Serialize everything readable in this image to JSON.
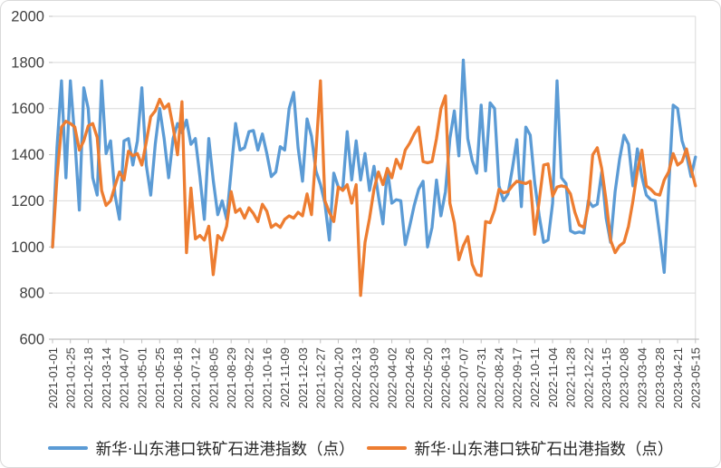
{
  "chart_data": {
    "type": "line",
    "title": "",
    "grid": "horizontal",
    "legend_position": "bottom",
    "background_color": "#FFFFFF",
    "gridline_color": "#D9D9D9",
    "axis_color": "#BFBFBF",
    "text_color": "#404040",
    "y_axis": {
      "range": [
        600,
        2000
      ],
      "ticks": [
        600,
        800,
        1000,
        1200,
        1400,
        1600,
        1800,
        2000
      ]
    },
    "x_axis": {
      "points_per_tick": 4,
      "tick_labels": [
        "2021-01-01",
        "2021-01-25",
        "2021-02-18",
        "2021-03-14",
        "2021-04-07",
        "2021-05-01",
        "2021-05-25",
        "2021-06-18",
        "2021-07-12",
        "2021-08-05",
        "2021-08-29",
        "2021-09-22",
        "2021-10-16",
        "2021-11-09",
        "2021-12-03",
        "2021-12-27",
        "2022-01-20",
        "2022-02-13",
        "2022-03-09",
        "2022-04-02",
        "2022-04-26",
        "2022-05-20",
        "2022-06-13",
        "2022-07-07",
        "2022-07-31",
        "2022-08-24",
        "2022-09-17",
        "2022-10-11",
        "2022-11-04",
        "2022-11-28",
        "2022-12-22",
        "2023-01-15",
        "2023-02-08",
        "2023-03-04",
        "2023-03-28",
        "2023-04-21",
        "2023-05-15"
      ]
    },
    "series": [
      {
        "name": "新华·山东港口铁矿石进港指数（点）",
        "color": "#5B9BD5",
        "values": [
          1000,
          1430,
          1720,
          1300,
          1720,
          1470,
          1160,
          1690,
          1600,
          1300,
          1225,
          1720,
          1405,
          1460,
          1225,
          1120,
          1460,
          1470,
          1355,
          1460,
          1690,
          1355,
          1225,
          1445,
          1600,
          1470,
          1300,
          1470,
          1535,
          1495,
          1550,
          1445,
          1470,
          1305,
          1120,
          1470,
          1290,
          1140,
          1200,
          1120,
          1330,
          1535,
          1420,
          1430,
          1500,
          1505,
          1420,
          1490,
          1405,
          1305,
          1325,
          1435,
          1420,
          1600,
          1670,
          1430,
          1285,
          1555,
          1480,
          1330,
          1270,
          1190,
          1030,
          1320,
          1260,
          1250,
          1500,
          1290,
          1460,
          1290,
          1405,
          1245,
          1350,
          1220,
          1100,
          1340,
          1190,
          1205,
          1200,
          1010,
          1090,
          1180,
          1250,
          1285,
          1000,
          1085,
          1290,
          1135,
          1240,
          1470,
          1590,
          1395,
          1810,
          1470,
          1375,
          1320,
          1615,
          1330,
          1625,
          1600,
          1265,
          1200,
          1230,
          1340,
          1465,
          1175,
          1520,
          1485,
          1280,
          1135,
          1020,
          1030,
          1190,
          1720,
          1300,
          1275,
          1070,
          1060,
          1065,
          1060,
          1200,
          1175,
          1185,
          1325,
          1125,
          1020,
          1240,
          1380,
          1485,
          1445,
          1265,
          1425,
          1305,
          1225,
          1205,
          1200,
          1050,
          890,
          1250,
          1615,
          1600,
          1460,
          1400,
          1305,
          1390
        ]
      },
      {
        "name": "新华·山东港口铁矿石出港指数（点）",
        "color": "#ED7D31",
        "values": [
          1000,
          1300,
          1520,
          1545,
          1535,
          1520,
          1420,
          1460,
          1525,
          1535,
          1475,
          1245,
          1180,
          1200,
          1265,
          1325,
          1290,
          1415,
          1395,
          1405,
          1355,
          1455,
          1565,
          1590,
          1640,
          1600,
          1620,
          1520,
          1400,
          1630,
          975,
          1255,
          1035,
          1050,
          1030,
          1090,
          880,
          1050,
          1030,
          1090,
          1240,
          1150,
          1165,
          1125,
          1170,
          1145,
          1110,
          1185,
          1155,
          1085,
          1100,
          1085,
          1120,
          1135,
          1125,
          1150,
          1135,
          1230,
          1140,
          1410,
          1720,
          1200,
          1150,
          1110,
          1260,
          1245,
          1270,
          1190,
          1270,
          790,
          1020,
          1125,
          1250,
          1325,
          1270,
          1340,
          1300,
          1380,
          1340,
          1420,
          1450,
          1490,
          1520,
          1370,
          1365,
          1370,
          1470,
          1600,
          1655,
          1190,
          1105,
          945,
          1005,
          1045,
          925,
          880,
          875,
          1110,
          1105,
          1160,
          1250,
          1235,
          1240,
          1265,
          1285,
          1280,
          1275,
          1285,
          1055,
          1200,
          1355,
          1360,
          1220,
          1260,
          1265,
          1260,
          1230,
          1150,
          1095,
          1085,
          1180,
          1400,
          1430,
          1340,
          1200,
          1030,
          975,
          1005,
          1020,
          1090,
          1200,
          1330,
          1420,
          1265,
          1250,
          1230,
          1225,
          1290,
          1325,
          1405,
          1355,
          1370,
          1425,
          1340,
          1265
        ]
      }
    ]
  }
}
